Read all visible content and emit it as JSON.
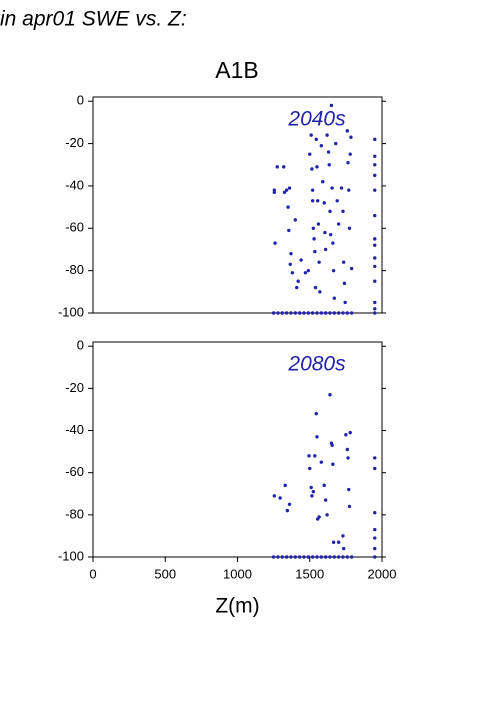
{
  "chart_data": [
    {
      "type": "scatter",
      "suptitle": "in apr01 SWE vs. Z:",
      "title": "A1B",
      "annotation": "2040s",
      "color": "#2222aa",
      "xlim": [
        0,
        2000
      ],
      "ylim": [
        -100,
        2
      ],
      "yticks": [
        0,
        -20,
        -40,
        -60,
        -80,
        -100
      ],
      "x": [
        1255,
        1255,
        1260,
        1275,
        1320,
        1325,
        1340,
        1350,
        1355,
        1360,
        1365,
        1370,
        1380,
        1400,
        1410,
        1420,
        1440,
        1470,
        1490,
        1500,
        1510,
        1515,
        1520,
        1520,
        1525,
        1530,
        1535,
        1540,
        1545,
        1550,
        1555,
        1560,
        1565,
        1570,
        1580,
        1590,
        1600,
        1605,
        1610,
        1620,
        1630,
        1635,
        1640,
        1645,
        1650,
        1655,
        1660,
        1665,
        1670,
        1680,
        1690,
        1700,
        1720,
        1730,
        1735,
        1740,
        1745,
        1760,
        1765,
        1770,
        1775,
        1780,
        1785,
        1790,
        1950,
        1950,
        1950,
        1950,
        1950,
        1950,
        1950,
        1950,
        1950,
        1950,
        1950,
        1950,
        1950,
        1250,
        1280,
        1310,
        1340,
        1370,
        1400,
        1430,
        1460,
        1490,
        1520,
        1550,
        1580,
        1610,
        1640,
        1670,
        1700,
        1730,
        1760,
        1790,
        1950
      ],
      "y": [
        -42,
        -43,
        -67,
        -31,
        -31,
        -43,
        -42,
        -50,
        -61,
        -41,
        -77,
        -72,
        -81,
        -56,
        -88,
        -85,
        -75,
        -81,
        -80,
        -25,
        -16,
        -32,
        -42,
        -47,
        -60,
        -65,
        -71,
        -88,
        -18,
        -31,
        -47,
        -58,
        -76,
        -90,
        -21,
        -38,
        -48,
        -62,
        -70,
        -16,
        -24,
        -30,
        -52,
        -63,
        -2,
        -41,
        -67,
        -80,
        -93,
        -20,
        -47,
        -58,
        -41,
        -52,
        -76,
        -86,
        -95,
        -14,
        -29,
        -42,
        -60,
        -25,
        -17,
        -79,
        -18,
        -26,
        -30,
        -35,
        -42,
        -54,
        -65,
        -68,
        -74,
        -78,
        -85,
        -95,
        -98,
        -100,
        -100,
        -100,
        -100,
        -100,
        -100,
        -100,
        -100,
        -100,
        -100,
        -100,
        -100,
        -100,
        -100,
        -100,
        -100,
        -100,
        -100,
        -100,
        -100
      ]
    },
    {
      "type": "scatter",
      "annotation": "2080s",
      "color": "#2222aa",
      "xlabel": "Z(m)",
      "xlim": [
        0,
        2000
      ],
      "ylim": [
        -100,
        2
      ],
      "yticks": [
        0,
        -20,
        -40,
        -60,
        -80,
        -100
      ],
      "xticks": [
        0,
        500,
        1000,
        1500,
        2000
      ],
      "x": [
        1255,
        1295,
        1330,
        1345,
        1360,
        1495,
        1500,
        1510,
        1515,
        1525,
        1535,
        1545,
        1550,
        1555,
        1565,
        1580,
        1600,
        1610,
        1620,
        1640,
        1650,
        1655,
        1660,
        1665,
        1700,
        1730,
        1735,
        1750,
        1760,
        1765,
        1770,
        1775,
        1780,
        1950,
        1950,
        1950,
        1950,
        1950,
        1950,
        1250,
        1280,
        1310,
        1340,
        1370,
        1400,
        1430,
        1460,
        1490,
        1520,
        1550,
        1580,
        1610,
        1640,
        1670,
        1700,
        1730,
        1760,
        1790,
        1950
      ],
      "y": [
        -71,
        -72,
        -66,
        -78,
        -75,
        -52,
        -58,
        -67,
        -71,
        -69,
        -52,
        -32,
        -43,
        -82,
        -81,
        -55,
        -66,
        -73,
        -80,
        -23,
        -46,
        -47,
        -56,
        -93,
        -93,
        -90,
        -96,
        -42,
        -49,
        -53,
        -68,
        -76,
        -41,
        -53,
        -58,
        -79,
        -87,
        -91,
        -96,
        -100,
        -100,
        -100,
        -100,
        -100,
        -100,
        -100,
        -100,
        -100,
        -100,
        -100,
        -100,
        -100,
        -100,
        -100,
        -100,
        -100,
        -100,
        -100,
        -100
      ]
    }
  ]
}
